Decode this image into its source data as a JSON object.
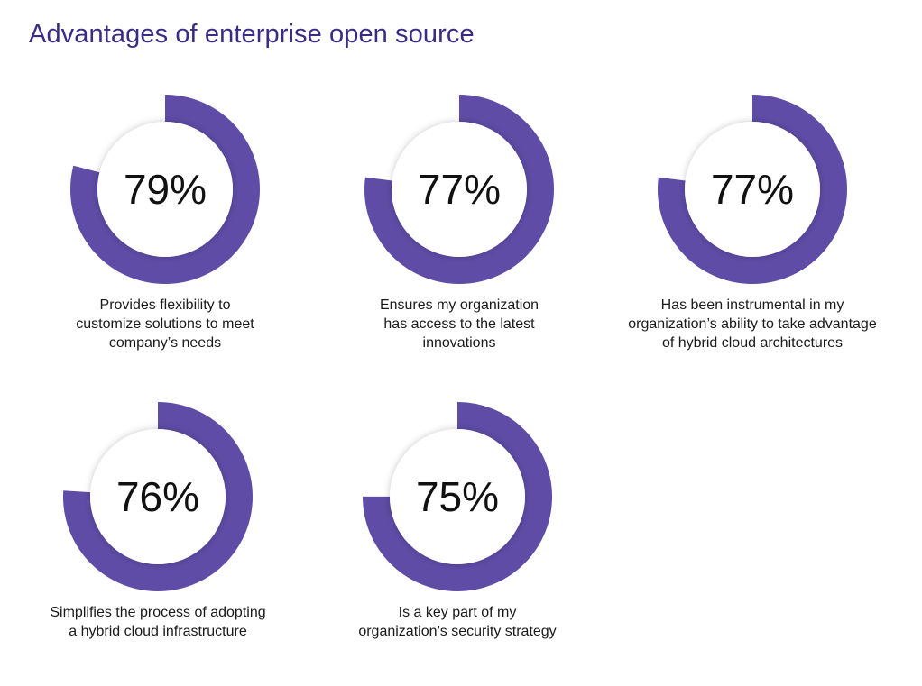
{
  "title": "Advantages of enterprise open source",
  "colors": {
    "accent": "#5e4ca6",
    "ring_bg": "#ffffff",
    "title": "#3a2c84"
  },
  "chart_data": {
    "type": "pie",
    "variant": "donut-set",
    "title": "Advantages of enterprise open source",
    "unit": "%",
    "items": [
      {
        "value": 79,
        "label_text": "79%",
        "caption": "Provides flexibility to\ncustomize solutions to meet\ncompany’s needs"
      },
      {
        "value": 77,
        "label_text": "77%",
        "caption": "Ensures my organization\nhas access to the latest\ninnovations"
      },
      {
        "value": 77,
        "label_text": "77%",
        "caption": "Has been instrumental in my\norganization’s ability to take advantage\nof hybrid cloud architectures"
      },
      {
        "value": 76,
        "label_text": "76%",
        "caption": "Simplifies the process of adopting\na hybrid cloud infrastructure"
      },
      {
        "value": 75,
        "label_text": "75%",
        "caption": "Is a key part of my\norganization’s security strategy"
      }
    ]
  }
}
